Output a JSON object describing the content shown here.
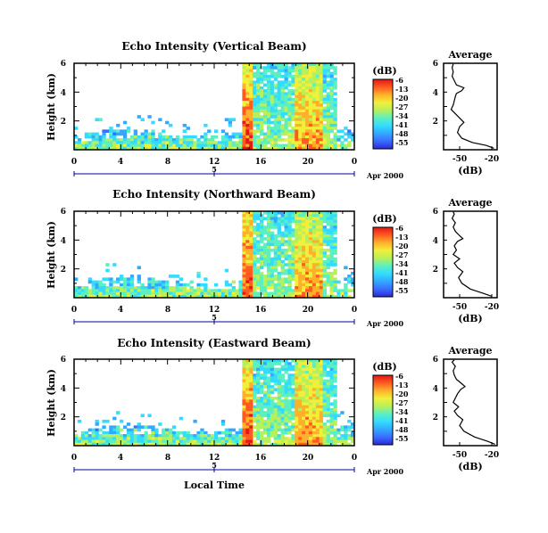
{
  "colors": {
    "scale": [
      "#2a2ad8",
      "#3a6cff",
      "#33a8ff",
      "#33dcff",
      "#5cf0c0",
      "#b8f05a",
      "#f0f03a",
      "#ffb02a",
      "#ff5a20",
      "#e01818"
    ],
    "axis": "#000000",
    "date_axis": "#0000a0"
  },
  "chart_data": [
    {
      "type": "heatmap",
      "title": "Echo Intensity (Vertical Beam)",
      "ylabel": "Height (km)",
      "x_ticks": [
        "0",
        "4",
        "8",
        "12",
        "16",
        "20",
        "0"
      ],
      "y_ticks": [
        "6",
        "4",
        "2"
      ],
      "xlim": [
        0,
        24
      ],
      "ylim": [
        0,
        6
      ],
      "date_marker": "5",
      "date_label": "Apr 2000",
      "colorbar": {
        "unit": "(dB)",
        "ticks": [
          "-6",
          "-13",
          "-20",
          "-27",
          "-34",
          "-41",
          "-48",
          "-55"
        ]
      },
      "profile": {
        "title": "Average",
        "xlabel": "(dB)",
        "x_ticks": [
          "-50",
          "-20"
        ],
        "y_ticks": [
          "6",
          "4",
          "2"
        ],
        "xlim": [
          -65,
          -15
        ],
        "ylim": [
          0,
          6
        ],
        "points": [
          [
            -18,
            0.1
          ],
          [
            -25,
            0.3
          ],
          [
            -38,
            0.5
          ],
          [
            -48,
            0.8
          ],
          [
            -52,
            1.2
          ],
          [
            -50,
            1.6
          ],
          [
            -46,
            1.9
          ],
          [
            -50,
            2.2
          ],
          [
            -54,
            2.5
          ],
          [
            -58,
            2.8
          ],
          [
            -56,
            3.1
          ],
          [
            -55,
            3.4
          ],
          [
            -54,
            3.7
          ],
          [
            -53,
            3.9
          ],
          [
            -48,
            4.1
          ],
          [
            -46,
            4.3
          ],
          [
            -53,
            4.5
          ],
          [
            -55,
            4.8
          ],
          [
            -57,
            5.1
          ],
          [
            -56,
            5.4
          ],
          [
            -57,
            5.7
          ],
          [
            -56,
            5.95
          ]
        ]
      }
    },
    {
      "type": "heatmap",
      "title": "Echo Intensity (Northward Beam)",
      "ylabel": "Height (km)",
      "x_ticks": [
        "0",
        "4",
        "8",
        "12",
        "16",
        "20",
        "0"
      ],
      "y_ticks": [
        "6",
        "4",
        "2"
      ],
      "xlim": [
        0,
        24
      ],
      "ylim": [
        0,
        6
      ],
      "date_marker": "5",
      "date_label": "Apr 2000",
      "colorbar": {
        "unit": "(dB)",
        "ticks": [
          "-6",
          "-13",
          "-20",
          "-27",
          "-34",
          "-41",
          "-48",
          "-55"
        ]
      },
      "profile": {
        "title": "Average",
        "xlabel": "(dB)",
        "x_ticks": [
          "-50",
          "-20"
        ],
        "y_ticks": [
          "6",
          "4",
          "2"
        ],
        "xlim": [
          -65,
          -15
        ],
        "ylim": [
          0,
          6
        ],
        "points": [
          [
            -20,
            0.1
          ],
          [
            -28,
            0.3
          ],
          [
            -40,
            0.6
          ],
          [
            -48,
            1.0
          ],
          [
            -51,
            1.4
          ],
          [
            -47,
            1.8
          ],
          [
            -52,
            2.1
          ],
          [
            -55,
            2.4
          ],
          [
            -50,
            2.7
          ],
          [
            -56,
            3.0
          ],
          [
            -53,
            3.3
          ],
          [
            -55,
            3.6
          ],
          [
            -52,
            3.9
          ],
          [
            -47,
            4.1
          ],
          [
            -50,
            4.3
          ],
          [
            -54,
            4.6
          ],
          [
            -56,
            4.9
          ],
          [
            -54,
            5.2
          ],
          [
            -57,
            5.5
          ],
          [
            -55,
            5.8
          ],
          [
            -56,
            5.95
          ]
        ]
      }
    },
    {
      "type": "heatmap",
      "title": "Echo Intensity (Eastward Beam)",
      "ylabel": "Height (km)",
      "xlabel": "Local Time",
      "x_ticks": [
        "0",
        "4",
        "8",
        "12",
        "16",
        "20",
        "0"
      ],
      "y_ticks": [
        "6",
        "4",
        "2"
      ],
      "xlim": [
        0,
        24
      ],
      "ylim": [
        0,
        6
      ],
      "date_marker": "5",
      "date_label": "Apr 2000",
      "colorbar": {
        "unit": "(dB)",
        "ticks": [
          "-6",
          "-13",
          "-20",
          "-27",
          "-34",
          "-41",
          "-48",
          "-55"
        ]
      },
      "profile": {
        "title": "Average",
        "xlabel": "(dB)",
        "x_ticks": [
          "-50",
          "-20"
        ],
        "y_ticks": [
          "6",
          "4",
          "2"
        ],
        "xlim": [
          -65,
          -15
        ],
        "ylim": [
          0,
          6
        ],
        "points": [
          [
            -17,
            0.1
          ],
          [
            -24,
            0.3
          ],
          [
            -36,
            0.6
          ],
          [
            -46,
            1.0
          ],
          [
            -50,
            1.4
          ],
          [
            -47,
            1.8
          ],
          [
            -52,
            2.1
          ],
          [
            -55,
            2.4
          ],
          [
            -51,
            2.7
          ],
          [
            -56,
            3.0
          ],
          [
            -54,
            3.3
          ],
          [
            -52,
            3.6
          ],
          [
            -49,
            3.9
          ],
          [
            -45,
            4.1
          ],
          [
            -48,
            4.3
          ],
          [
            -53,
            4.6
          ],
          [
            -55,
            4.9
          ],
          [
            -56,
            5.2
          ],
          [
            -54,
            5.5
          ],
          [
            -57,
            5.8
          ],
          [
            -55,
            5.95
          ]
        ]
      }
    }
  ]
}
